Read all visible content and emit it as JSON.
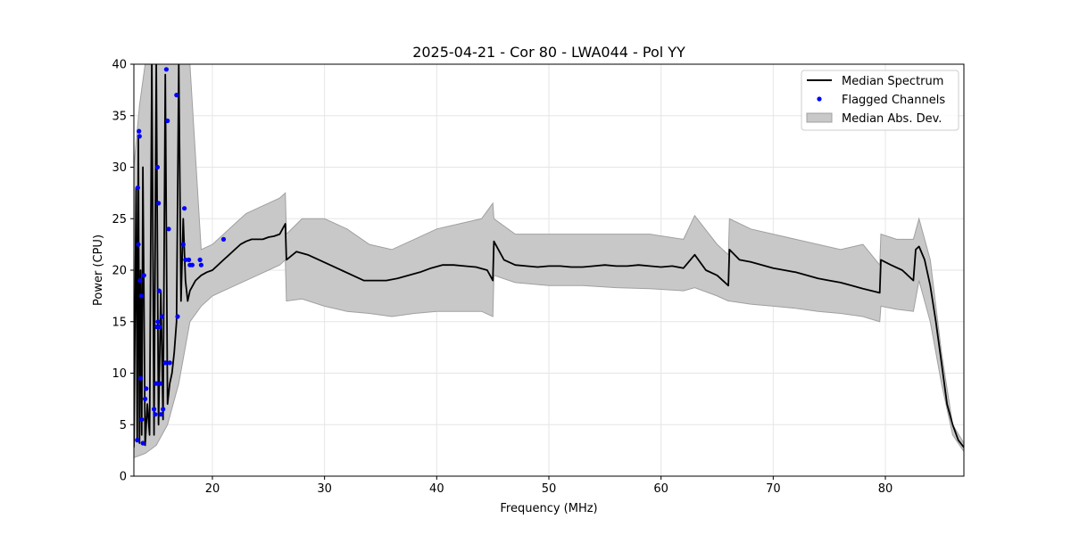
{
  "chart_data": {
    "type": "line",
    "title": "2025-04-21 - Cor 80 - LWA044 - Pol YY",
    "xlabel": "Frequency (MHz)",
    "ylabel": "Power (CPU)",
    "xlim": [
      13,
      87
    ],
    "ylim": [
      0,
      40
    ],
    "xticks": [
      20,
      30,
      40,
      50,
      60,
      70,
      80
    ],
    "yticks": [
      0,
      5,
      10,
      15,
      20,
      25,
      30,
      35,
      40
    ],
    "grid": true,
    "legend_position": "top-right",
    "colors": {
      "median": "#000000",
      "flagged": "#0000ff",
      "band_fill": "#c8c8c8",
      "band_edge": "#a0a0a0"
    },
    "series": [
      {
        "name": "Median Spectrum",
        "kind": "line",
        "x": [
          13.0,
          13.2,
          13.3,
          13.4,
          13.5,
          13.6,
          13.7,
          13.8,
          14.0,
          14.2,
          14.4,
          14.6,
          14.8,
          15.0,
          15.2,
          15.4,
          15.6,
          15.8,
          16.0,
          16.2,
          16.4,
          16.6,
          16.8,
          17.0,
          17.2,
          17.4,
          17.6,
          17.8,
          18.0,
          18.5,
          19.0,
          19.5,
          20.0,
          20.5,
          21.0,
          21.5,
          22.0,
          22.5,
          23.0,
          23.5,
          24.0,
          24.5,
          25.0,
          25.5,
          26.0,
          26.5,
          26.6,
          27.5,
          28.5,
          29.5,
          30.5,
          31.5,
          32.5,
          33.5,
          34.5,
          35.5,
          36.5,
          37.5,
          38.5,
          39.5,
          40.5,
          41.5,
          42.5,
          43.5,
          44.5,
          45.0,
          45.1,
          46.0,
          47.0,
          48.0,
          49.0,
          50.0,
          51.0,
          52.0,
          53.0,
          54.0,
          55.0,
          56.0,
          57.0,
          58.0,
          59.0,
          60.0,
          61.0,
          62.0,
          63.0,
          64.0,
          65.0,
          66.0,
          66.1,
          67.0,
          68.0,
          69.0,
          70.0,
          71.0,
          72.0,
          73.0,
          74.0,
          75.0,
          76.0,
          77.0,
          78.0,
          79.5,
          79.6,
          80.5,
          81.5,
          82.5,
          82.7,
          83.0,
          83.5,
          84.0,
          84.5,
          85.0,
          85.5,
          86.0,
          86.5,
          87.0
        ],
        "values": [
          2.8,
          28.0,
          3.5,
          33.0,
          3.2,
          20.0,
          4.0,
          30.0,
          3.0,
          7.0,
          4.0,
          40.0,
          4.0,
          40.0,
          5.0,
          18.0,
          5.5,
          39.0,
          7.0,
          9.0,
          10.0,
          12.0,
          15.0,
          40.0,
          17.0,
          25.0,
          19.0,
          17.0,
          18.0,
          19.0,
          19.5,
          19.8,
          20.0,
          20.5,
          21.0,
          21.5,
          22.0,
          22.5,
          22.8,
          23.0,
          23.0,
          23.0,
          23.2,
          23.3,
          23.5,
          24.5,
          21.0,
          21.8,
          21.5,
          21.0,
          20.5,
          20.0,
          19.5,
          19.0,
          19.0,
          19.0,
          19.2,
          19.5,
          19.8,
          20.2,
          20.5,
          20.5,
          20.4,
          20.3,
          20.0,
          19.0,
          22.8,
          21.0,
          20.5,
          20.4,
          20.3,
          20.4,
          20.4,
          20.3,
          20.3,
          20.4,
          20.5,
          20.4,
          20.4,
          20.5,
          20.4,
          20.3,
          20.4,
          20.2,
          21.5,
          20.0,
          19.5,
          18.5,
          22.0,
          21.0,
          20.8,
          20.5,
          20.2,
          20.0,
          19.8,
          19.5,
          19.2,
          19.0,
          18.8,
          18.5,
          18.2,
          17.8,
          21.0,
          20.5,
          20.0,
          19.0,
          22.0,
          22.3,
          21.0,
          18.5,
          15.0,
          11.0,
          7.0,
          5.0,
          3.5,
          2.8
        ]
      },
      {
        "name": "Median Abs. Dev.",
        "kind": "band",
        "x": [
          13.0,
          13.5,
          14.0,
          15.0,
          16.0,
          17.0,
          18.0,
          19.0,
          20.0,
          21.0,
          22.0,
          23.0,
          24.0,
          25.0,
          26.0,
          26.5,
          26.6,
          28.0,
          30.0,
          32.0,
          34.0,
          36.0,
          38.0,
          40.0,
          42.0,
          44.0,
          45.0,
          45.1,
          47.0,
          50.0,
          53.0,
          56.0,
          59.0,
          62.0,
          63.0,
          65.0,
          66.0,
          66.1,
          68.0,
          70.0,
          72.0,
          74.0,
          76.0,
          78.0,
          79.5,
          79.6,
          81.0,
          82.5,
          83.0,
          84.0,
          85.0,
          86.0,
          87.0
        ],
        "lower": [
          1.8,
          2.0,
          2.2,
          3.0,
          5.0,
          9.0,
          15.0,
          16.5,
          17.5,
          18.0,
          18.5,
          19.0,
          19.5,
          20.0,
          20.5,
          21.0,
          17.0,
          17.2,
          16.5,
          16.0,
          15.8,
          15.5,
          15.8,
          16.0,
          16.0,
          16.0,
          15.5,
          19.5,
          18.8,
          18.5,
          18.5,
          18.3,
          18.2,
          18.0,
          18.3,
          17.5,
          17.0,
          17.0,
          16.7,
          16.5,
          16.3,
          16.0,
          15.8,
          15.5,
          15.0,
          16.5,
          16.2,
          16.0,
          19.0,
          15.0,
          9.0,
          4.0,
          2.4
        ],
        "upper": [
          30.0,
          36.0,
          40.0,
          40.0,
          40.0,
          40.0,
          40.0,
          22.0,
          22.5,
          23.5,
          24.5,
          25.5,
          26.0,
          26.5,
          27.0,
          27.5,
          23.5,
          25.0,
          25.0,
          24.0,
          22.5,
          22.0,
          23.0,
          24.0,
          24.5,
          25.0,
          26.5,
          25.0,
          23.5,
          23.5,
          23.5,
          23.5,
          23.5,
          23.0,
          25.3,
          22.5,
          21.5,
          25.0,
          24.0,
          23.5,
          23.0,
          22.5,
          22.0,
          22.5,
          20.5,
          23.5,
          23.0,
          23.0,
          25.0,
          21.0,
          12.0,
          5.0,
          3.2
        ]
      },
      {
        "name": "Flagged Channels",
        "kind": "scatter",
        "x": [
          13.3,
          13.35,
          13.4,
          13.45,
          13.5,
          13.55,
          13.6,
          13.65,
          13.7,
          13.8,
          13.9,
          14.0,
          14.1,
          14.8,
          14.9,
          15.0,
          15.05,
          15.1,
          15.15,
          15.2,
          15.25,
          15.3,
          15.35,
          15.4,
          15.5,
          15.6,
          15.8,
          15.9,
          16.0,
          16.1,
          16.2,
          16.8,
          16.9,
          17.4,
          17.5,
          17.6,
          17.9,
          18.0,
          18.2,
          18.9,
          19.0,
          21.0
        ],
        "values": [
          3.5,
          28.0,
          22.5,
          33.5,
          33.0,
          19.0,
          9.5,
          17.5,
          5.5,
          3.2,
          19.5,
          7.5,
          8.5,
          6.5,
          6.0,
          9.0,
          14.5,
          30.0,
          15.0,
          26.5,
          18.0,
          14.5,
          9.0,
          6.0,
          15.5,
          6.5,
          11.0,
          39.5,
          34.5,
          24.0,
          11.0,
          37.0,
          15.5,
          22.5,
          26.0,
          21.0,
          21.0,
          20.5,
          20.5,
          21.0,
          20.5,
          23.0
        ]
      }
    ]
  }
}
